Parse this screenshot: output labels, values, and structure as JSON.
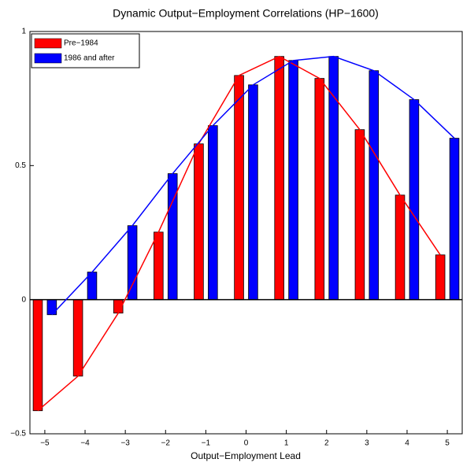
{
  "chart_data": {
    "type": "bar-line",
    "title": "Dynamic Output−Employment Correlations (HP−1600)",
    "xlabel": "Output−Employment Lead",
    "x": [
      -5,
      -4,
      -3,
      -2,
      -1,
      0,
      1,
      2,
      3,
      4,
      5
    ],
    "series": [
      {
        "name": "Pre−1984",
        "color": "#ff0000",
        "values": [
          -0.414,
          -0.285,
          -0.05,
          0.252,
          0.581,
          0.836,
          0.907,
          0.825,
          0.634,
          0.39,
          0.167
        ]
      },
      {
        "name": "1986 and after",
        "color": "#0000ff",
        "values": [
          -0.056,
          0.103,
          0.276,
          0.47,
          0.649,
          0.801,
          0.892,
          0.907,
          0.854,
          0.746,
          0.602
        ]
      }
    ],
    "xlim": [
      -5.37,
      5.37
    ],
    "xticks": [
      {
        "value": -5,
        "label": "−5"
      },
      {
        "value": -4,
        "label": "−4"
      },
      {
        "value": -3,
        "label": "−3"
      },
      {
        "value": -2,
        "label": "−2"
      },
      {
        "value": -1,
        "label": "−1"
      },
      0,
      1,
      2,
      3,
      4,
      5
    ],
    "ylim": [
      -0.5,
      1
    ],
    "yticks": [
      {
        "value": -0.5,
        "label": "−0.5"
      },
      0,
      0.5,
      1
    ],
    "legend": "upper left"
  }
}
